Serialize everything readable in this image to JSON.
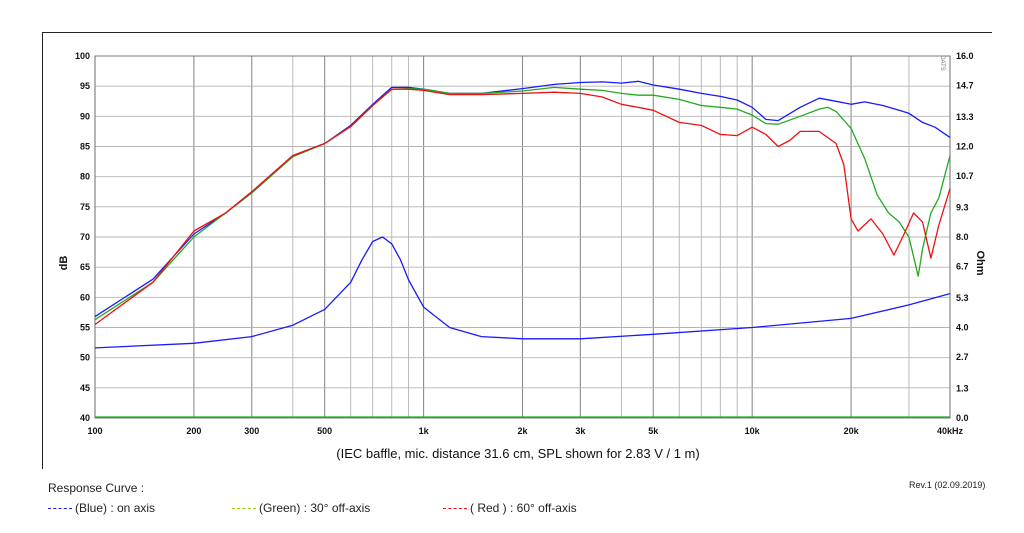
{
  "chart_data": {
    "type": "line",
    "x_scale": "log",
    "xlim": [
      100,
      40000
    ],
    "ylim": [
      40,
      100
    ],
    "y2lim": [
      0,
      16.0
    ],
    "grid": true,
    "xlabel": "",
    "ylabel": "dB",
    "y2label": "Ohm",
    "x_ticks": [
      {
        "v": 100,
        "label": "100"
      },
      {
        "v": 200,
        "label": "200"
      },
      {
        "v": 300,
        "label": "300"
      },
      {
        "v": 500,
        "label": "500"
      },
      {
        "v": 1000,
        "label": "1k"
      },
      {
        "v": 2000,
        "label": "2k"
      },
      {
        "v": 3000,
        "label": "3k"
      },
      {
        "v": 5000,
        "label": "5k"
      },
      {
        "v": 10000,
        "label": "10k"
      },
      {
        "v": 20000,
        "label": "20k"
      },
      {
        "v": 40000,
        "label": "40kHz"
      }
    ],
    "y_ticks": [
      40,
      45,
      50,
      55,
      60,
      65,
      70,
      75,
      80,
      85,
      90,
      95,
      100
    ],
    "y2_ticks": [
      "0.0",
      "1.3",
      "2.7",
      "4.0",
      "5.3",
      "6.7",
      "8.0",
      "9.3",
      "10.7",
      "12.0",
      "13.3",
      "14.7",
      "16.0"
    ],
    "caption": "(IEC baffle, mic. distance 31.6 cm, SPL shown for 2.83 V / 1 m)",
    "series": [
      {
        "color": "#1a1aff",
        "axis": "left",
        "points": [
          [
            100,
            56.8
          ],
          [
            150,
            63
          ],
          [
            200,
            70.5
          ],
          [
            250,
            74
          ],
          [
            300,
            77.5
          ],
          [
            400,
            83.5
          ],
          [
            500,
            85.5
          ],
          [
            600,
            88.5
          ],
          [
            700,
            92
          ],
          [
            800,
            94.8
          ],
          [
            900,
            94.8
          ],
          [
            1000,
            94.5
          ],
          [
            1200,
            93.8
          ],
          [
            1500,
            93.8
          ],
          [
            2000,
            94.6
          ],
          [
            2500,
            95.3
          ],
          [
            3000,
            95.6
          ],
          [
            3500,
            95.7
          ],
          [
            4000,
            95.5
          ],
          [
            4500,
            95.8
          ],
          [
            5000,
            95.2
          ],
          [
            6000,
            94.5
          ],
          [
            7000,
            93.8
          ],
          [
            8000,
            93.3
          ],
          [
            9000,
            92.7
          ],
          [
            10000,
            91.5
          ],
          [
            11000,
            89.5
          ],
          [
            12000,
            89.3
          ],
          [
            14000,
            91.5
          ],
          [
            16000,
            93
          ],
          [
            18000,
            92.5
          ],
          [
            20000,
            92
          ],
          [
            22000,
            92.4
          ],
          [
            25000,
            91.8
          ],
          [
            28000,
            91
          ],
          [
            30000,
            90.5
          ],
          [
            33000,
            89
          ],
          [
            36000,
            88.2
          ],
          [
            40000,
            86.5
          ]
        ]
      },
      {
        "color": "#22aa22",
        "axis": "left",
        "points": [
          [
            100,
            56.3
          ],
          [
            150,
            62.5
          ],
          [
            200,
            70
          ],
          [
            250,
            74
          ],
          [
            300,
            77.3
          ],
          [
            400,
            83.3
          ],
          [
            500,
            85.5
          ],
          [
            600,
            88.3
          ],
          [
            700,
            91.8
          ],
          [
            800,
            94.5
          ],
          [
            900,
            94.6
          ],
          [
            1000,
            94.5
          ],
          [
            1200,
            93.8
          ],
          [
            1500,
            93.8
          ],
          [
            2000,
            94.2
          ],
          [
            2500,
            94.8
          ],
          [
            3000,
            94.5
          ],
          [
            3500,
            94.3
          ],
          [
            4000,
            93.8
          ],
          [
            4500,
            93.5
          ],
          [
            5000,
            93.5
          ],
          [
            6000,
            92.8
          ],
          [
            7000,
            91.8
          ],
          [
            8000,
            91.5
          ],
          [
            9000,
            91.2
          ],
          [
            10000,
            90.2
          ],
          [
            11000,
            88.8
          ],
          [
            12000,
            88.7
          ],
          [
            14000,
            90
          ],
          [
            16000,
            91.2
          ],
          [
            17000,
            91.5
          ],
          [
            18000,
            90.8
          ],
          [
            20000,
            88
          ],
          [
            22000,
            83
          ],
          [
            24000,
            77
          ],
          [
            26000,
            74
          ],
          [
            28000,
            72.5
          ],
          [
            30000,
            70
          ],
          [
            32000,
            63.5
          ],
          [
            33000,
            68
          ],
          [
            35000,
            74
          ],
          [
            37000,
            76.5
          ],
          [
            40000,
            83.5
          ]
        ]
      },
      {
        "color": "#ee1111",
        "axis": "left",
        "points": [
          [
            100,
            55.5
          ],
          [
            150,
            62.5
          ],
          [
            200,
            71
          ],
          [
            250,
            74
          ],
          [
            300,
            77.5
          ],
          [
            400,
            83.5
          ],
          [
            500,
            85.5
          ],
          [
            600,
            88.3
          ],
          [
            700,
            91.8
          ],
          [
            800,
            94.5
          ],
          [
            900,
            94.5
          ],
          [
            1000,
            94.3
          ],
          [
            1200,
            93.6
          ],
          [
            1500,
            93.6
          ],
          [
            2000,
            93.8
          ],
          [
            2500,
            94
          ],
          [
            3000,
            93.8
          ],
          [
            3500,
            93.2
          ],
          [
            4000,
            92
          ],
          [
            4500,
            91.5
          ],
          [
            5000,
            91
          ],
          [
            6000,
            89
          ],
          [
            7000,
            88.5
          ],
          [
            8000,
            87
          ],
          [
            9000,
            86.8
          ],
          [
            10000,
            88.2
          ],
          [
            11000,
            87
          ],
          [
            12000,
            85
          ],
          [
            13000,
            86
          ],
          [
            14000,
            87.5
          ],
          [
            16000,
            87.5
          ],
          [
            18000,
            85.5
          ],
          [
            19000,
            82
          ],
          [
            20000,
            73
          ],
          [
            21000,
            71
          ],
          [
            23000,
            73
          ],
          [
            25000,
            70.5
          ],
          [
            27000,
            67
          ],
          [
            29000,
            70.5
          ],
          [
            31000,
            74
          ],
          [
            33000,
            72.5
          ],
          [
            35000,
            66.5
          ],
          [
            37000,
            72
          ],
          [
            40000,
            78
          ]
        ]
      },
      {
        "color": "#1a1aff",
        "axis": "right",
        "points": [
          [
            100,
            3.1
          ],
          [
            200,
            3.3
          ],
          [
            300,
            3.6
          ],
          [
            400,
            4.1
          ],
          [
            500,
            4.8
          ],
          [
            600,
            6.0
          ],
          [
            650,
            7.0
          ],
          [
            700,
            7.8
          ],
          [
            750,
            8.0
          ],
          [
            800,
            7.7
          ],
          [
            850,
            7.0
          ],
          [
            900,
            6.1
          ],
          [
            1000,
            4.9
          ],
          [
            1200,
            4.0
          ],
          [
            1500,
            3.6
          ],
          [
            2000,
            3.5
          ],
          [
            3000,
            3.5
          ],
          [
            5000,
            3.7
          ],
          [
            10000,
            4.0
          ],
          [
            20000,
            4.4
          ],
          [
            30000,
            5.0
          ],
          [
            40000,
            5.5
          ]
        ]
      }
    ]
  },
  "legend": {
    "title": "Response Curve :",
    "items": [
      {
        "label": "(Blue)  : on axis",
        "color": "#1a1aff"
      },
      {
        "label": "(Green) : 30° off-axis",
        "color": "#99cc00"
      },
      {
        "label": "( Red )  : 60° off-axis",
        "color": "#ee1111"
      }
    ]
  },
  "revision": "Rev.1 (02.09.2019)",
  "logo_text": "DATS"
}
